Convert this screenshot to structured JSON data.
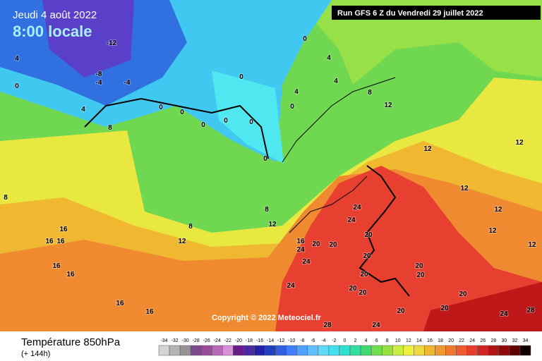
{
  "header": {
    "valid_date": "Jeudi 4 août 2022",
    "local_time": "8:00 locale",
    "run": "Run GFS 6 Z du Vendredi 29 juillet 2022"
  },
  "copyright": "Copyright © 2022 Meteociel.fr",
  "footer": {
    "title": "Température 850hPa",
    "lead": "(+ 144h)"
  },
  "contour_labels": [
    -12,
    -8,
    -4,
    -4,
    4,
    0,
    4,
    8,
    0,
    0,
    0,
    0,
    0,
    0,
    0,
    0,
    0,
    4,
    4,
    4,
    8,
    12,
    12,
    12,
    12,
    12,
    12,
    12,
    8,
    8,
    12,
    12,
    16,
    16,
    16,
    16,
    16,
    16,
    16,
    16,
    24,
    20,
    20,
    24,
    24,
    20,
    20,
    24,
    24,
    20,
    20,
    20,
    20,
    20,
    20,
    20,
    20,
    24,
    28,
    28,
    24,
    8
  ],
  "colorbar": {
    "values": [
      -34,
      -32,
      -30,
      -28,
      -26,
      -24,
      -22,
      -20,
      -18,
      -16,
      -14,
      -12,
      -10,
      -8,
      -6,
      -4,
      -2,
      0,
      2,
      4,
      6,
      8,
      10,
      12,
      14,
      16,
      18,
      20,
      22,
      24,
      26,
      28,
      30,
      32,
      34
    ],
    "colors": [
      "#d4d4d4",
      "#b4b4b4",
      "#949494",
      "#7a4a8a",
      "#9a4a9a",
      "#b868b8",
      "#d890d8",
      "#6a1b8a",
      "#4a2aa0",
      "#2020a8",
      "#2040c0",
      "#3060e0",
      "#4080ff",
      "#50a0ff",
      "#60c0ff",
      "#60d8f8",
      "#40e0f0",
      "#30e0d0",
      "#30e0a0",
      "#40d870",
      "#70e050",
      "#98e040",
      "#c8f040",
      "#f0f040",
      "#f0d840",
      "#f0b830",
      "#f09830",
      "#f07830",
      "#f05a30",
      "#e83c2c",
      "#d02424",
      "#b01414",
      "#900808",
      "#600000",
      "#100000"
    ]
  }
}
